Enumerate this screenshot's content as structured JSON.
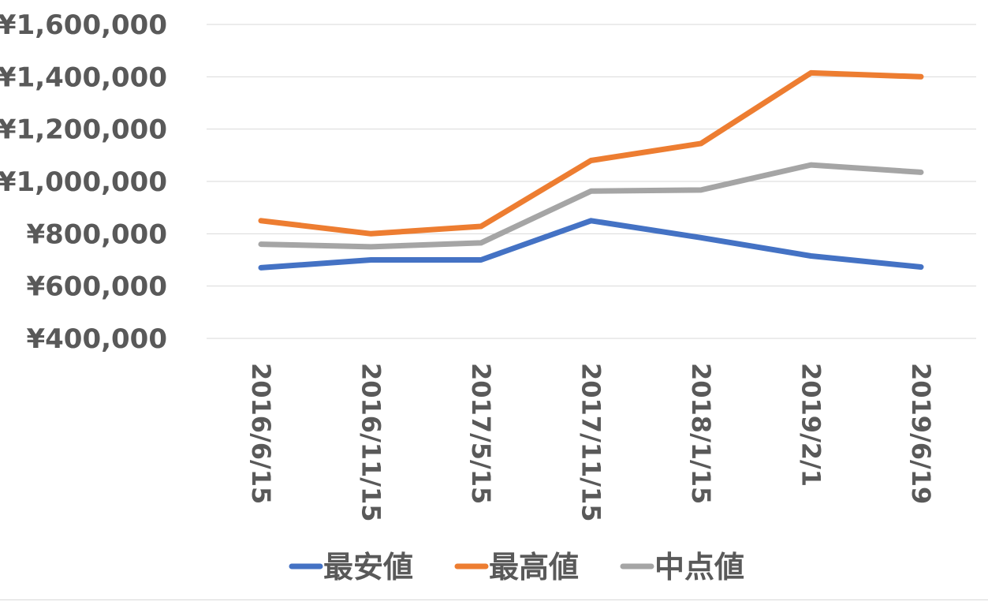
{
  "chart_data": {
    "type": "line",
    "title": "",
    "xlabel": "",
    "ylabel": "",
    "categories": [
      "2016/6/15",
      "2016/11/15",
      "2017/5/15",
      "2017/11/15",
      "2018/1/15",
      "2019/2/1",
      "2019/6/19"
    ],
    "ylim": [
      400000,
      1600000
    ],
    "yticks": [
      400000,
      600000,
      800000,
      1000000,
      1200000,
      1400000,
      1600000
    ],
    "ytick_labels": [
      "¥400,000",
      "¥600,000",
      "¥800,000",
      "¥1,000,000",
      "¥1,200,000",
      "¥1,400,000",
      "¥1,600,000"
    ],
    "grid": true,
    "legend_position": "bottom",
    "series": [
      {
        "name": "最安値",
        "color": "#4472c4",
        "values": [
          670000,
          700000,
          700000,
          850000,
          785000,
          715000,
          673000
        ]
      },
      {
        "name": "最高値",
        "color": "#ed7d31",
        "values": [
          850000,
          800000,
          828000,
          1080000,
          1145000,
          1415000,
          1400000
        ]
      },
      {
        "name": "中点値",
        "color": "#a5a5a5",
        "values": [
          760000,
          750000,
          765000,
          963000,
          967000,
          1063000,
          1035000
        ]
      }
    ]
  }
}
